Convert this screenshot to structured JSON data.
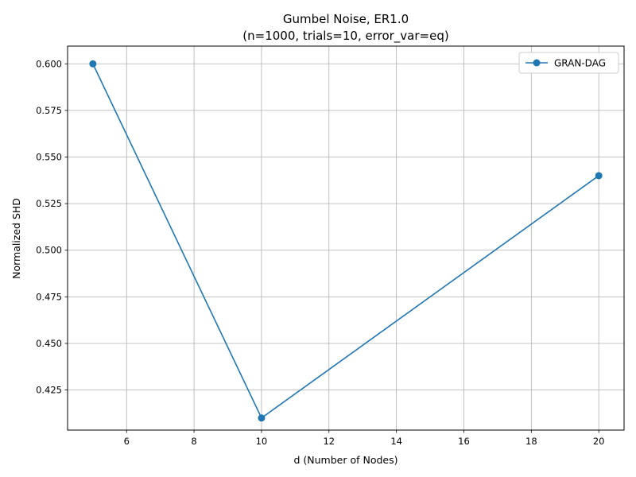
{
  "chart_data": {
    "type": "line",
    "title": "Gumbel Noise, ER1.0",
    "subtitle": "(n=1000, trials=10, error_var=eq)",
    "xlabel": "d (Number of Nodes)",
    "ylabel": "Normalized SHD",
    "xlim": [
      4.25,
      20.75
    ],
    "ylim": [
      0.4035,
      0.6095
    ],
    "xticks": [
      6,
      8,
      10,
      12,
      14,
      16,
      18,
      20
    ],
    "yticks": [
      0.425,
      0.45,
      0.475,
      0.5,
      0.525,
      0.55,
      0.575,
      0.6
    ],
    "ytick_labels": [
      "0.425",
      "0.450",
      "0.475",
      "0.500",
      "0.525",
      "0.550",
      "0.575",
      "0.600"
    ],
    "grid": true,
    "legend_position": "top-right",
    "series": [
      {
        "name": "GRAN-DAG",
        "color": "#1f77b4",
        "marker": "circle",
        "x": [
          5,
          10,
          20
        ],
        "y": [
          0.6,
          0.41,
          0.54
        ]
      }
    ]
  }
}
